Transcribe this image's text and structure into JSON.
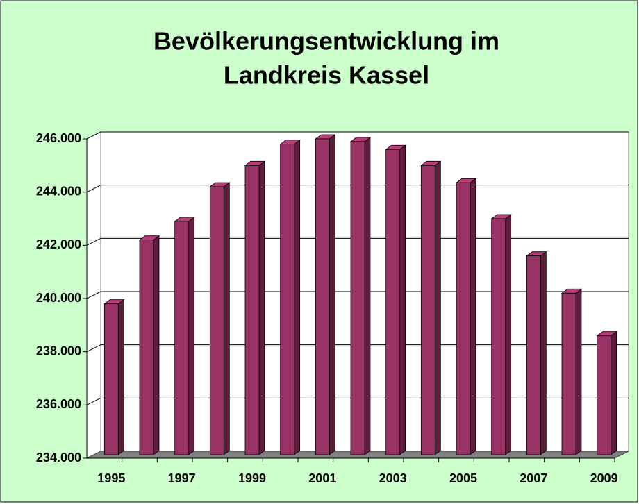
{
  "chart_data": {
    "type": "bar",
    "title_lines": [
      "Bevölkerungsentwicklung im",
      "Landkreis Kassel"
    ],
    "categories": [
      "1995",
      null,
      "1997",
      null,
      "1999",
      null,
      "2001",
      null,
      "2003",
      null,
      "2005",
      null,
      "2007",
      null,
      "2009"
    ],
    "values": [
      239800,
      242200,
      242900,
      244200,
      245000,
      245800,
      246000,
      245900,
      245600,
      245000,
      244350,
      243000,
      241600,
      240200,
      238600
    ],
    "color": "#993366",
    "ylim": [
      234000,
      246000
    ],
    "yticks": [
      {
        "value": 234000,
        "label": "234.000"
      },
      {
        "value": 236000,
        "label": "236.000"
      },
      {
        "value": 238000,
        "label": "238.000"
      },
      {
        "value": 240000,
        "label": "240.000"
      },
      {
        "value": 242000,
        "label": "242.000"
      },
      {
        "value": 244000,
        "label": "244.000"
      },
      {
        "value": 246000,
        "label": "246.000"
      }
    ],
    "grid": true
  }
}
